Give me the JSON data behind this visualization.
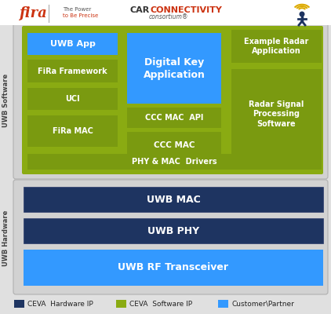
{
  "dark_blue": "#1e3461",
  "olive_green": "#8aab12",
  "sky_blue": "#3399ff",
  "rf_blue": "#3399ff",
  "white": "#ffffff",
  "bg_color": "#e0e0e0",
  "sw_section_bg": "#d0d0d0",
  "hw_section_bg": "#d0d0d0",
  "uwb_app": "UWB App",
  "fira_framework": "FiRa Framework",
  "uci": "UCI",
  "fira_mac": "FiRa MAC",
  "digital_key": "Digital Key\nApplication",
  "ccc_mac_api": "CCC MAC  API",
  "ccc_mac": "CCC MAC",
  "phy_mac_drivers": "PHY & MAC  Drivers",
  "example_radar": "Example Radar\nApplication",
  "radar_signal": "Radar Signal\nProcessing\nSoftware",
  "uwb_mac": "UWB MAC",
  "uwb_phy": "UWB PHY",
  "uwb_rf": "UWB RF Transceiver",
  "uwb_software_label": "UWB Software",
  "uwb_hardware_label": "UWB Hardware",
  "legend_hw": "CEVA  Hardware IP",
  "legend_sw": "CEVA  Software IP",
  "legend_cp": "Customer\\Partner",
  "fira_text": "fira",
  "fira_sub1": "The Power",
  "fira_sub2": "to Be Precise",
  "car_text": "CAR",
  "connectivity_text": "CONNECTIVITY",
  "consortium_text": "consortium"
}
